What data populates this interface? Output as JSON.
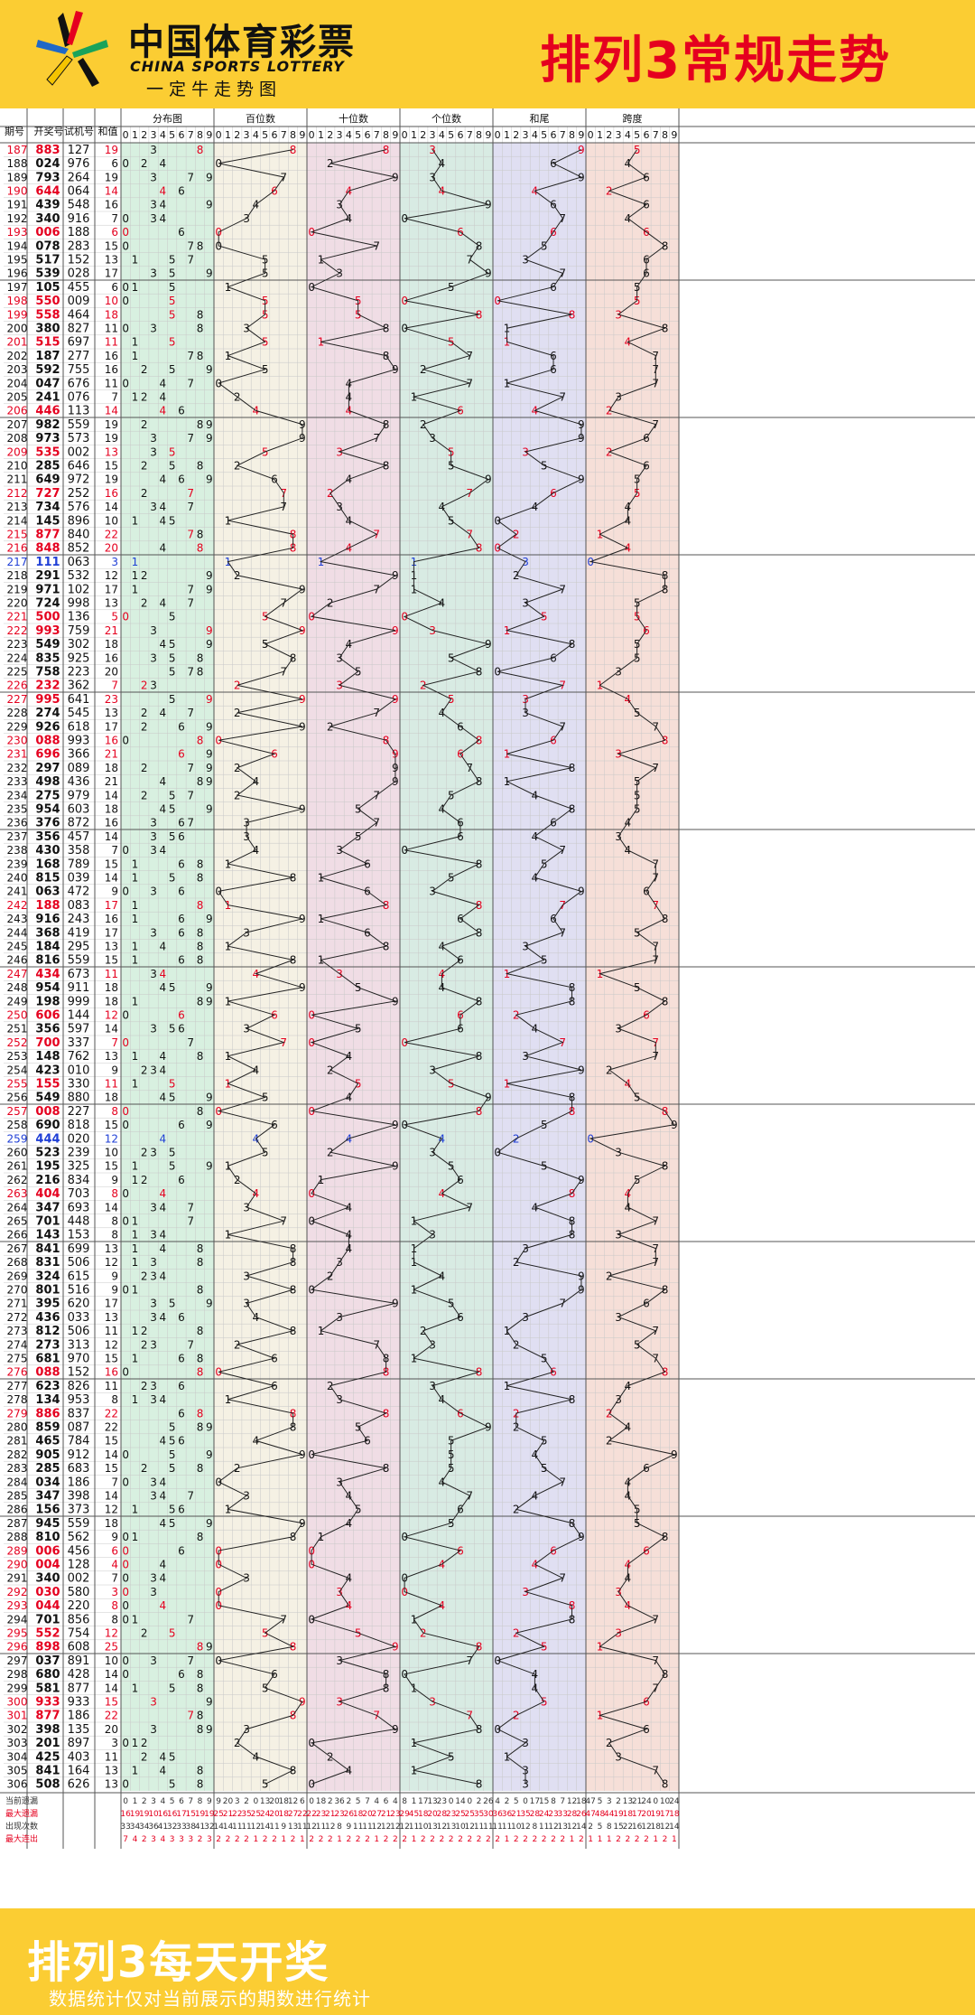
{
  "header": {
    "logo_cn": "中国体育彩票",
    "logo_en": "CHINA SPORTS LOTTERY",
    "logo_slogan": "一定牛走势图",
    "title": "排列3常规走势"
  },
  "footer": {
    "title": "排列3每天开奖",
    "note": "数据统计仅对当前展示的期数进行统计"
  },
  "chart_data": {
    "type": "table",
    "columns": [
      "期号",
      "开奖号",
      "试机号",
      "和值"
    ],
    "sections": [
      {
        "name": "分布图",
        "color": "#d8f0e0",
        "kind": "dist"
      },
      {
        "name": "百位数",
        "color": "#f5f1e4",
        "kind": "hundreds"
      },
      {
        "name": "十位数",
        "color": "#f0dde5",
        "kind": "tens"
      },
      {
        "name": "个位数",
        "color": "#d8ebe3",
        "kind": "units"
      },
      {
        "name": "和尾",
        "color": "#e0dff2",
        "kind": "sumtail"
      },
      {
        "name": "跨度",
        "color": "#f6dfd8",
        "kind": "span"
      }
    ],
    "digits": [
      "0",
      "1",
      "2",
      "3",
      "4",
      "5",
      "6",
      "7",
      "8",
      "9"
    ],
    "draws": [
      {
        "issue": "187",
        "draw": "883",
        "test": "127",
        "sum": 19
      },
      {
        "issue": "188",
        "draw": "024",
        "test": "976",
        "sum": 6
      },
      {
        "issue": "189",
        "draw": "793",
        "test": "264",
        "sum": 19
      },
      {
        "issue": "190",
        "draw": "644",
        "test": "064",
        "sum": 14
      },
      {
        "issue": "191",
        "draw": "439",
        "test": "548",
        "sum": 16
      },
      {
        "issue": "192",
        "draw": "340",
        "test": "916",
        "sum": 7
      },
      {
        "issue": "193",
        "draw": "006",
        "test": "188",
        "sum": 6
      },
      {
        "issue": "194",
        "draw": "078",
        "test": "283",
        "sum": 15
      },
      {
        "issue": "195",
        "draw": "517",
        "test": "152",
        "sum": 13
      },
      {
        "issue": "196",
        "draw": "539",
        "test": "028",
        "sum": 17
      },
      {
        "issue": "197",
        "draw": "105",
        "test": "455",
        "sum": 6
      },
      {
        "issue": "198",
        "draw": "550",
        "test": "009",
        "sum": 10
      },
      {
        "issue": "199",
        "draw": "558",
        "test": "464",
        "sum": 18
      },
      {
        "issue": "200",
        "draw": "380",
        "test": "827",
        "sum": 11
      },
      {
        "issue": "201",
        "draw": "515",
        "test": "697",
        "sum": 11
      },
      {
        "issue": "202",
        "draw": "187",
        "test": "277",
        "sum": 16
      },
      {
        "issue": "203",
        "draw": "592",
        "test": "755",
        "sum": 16
      },
      {
        "issue": "204",
        "draw": "047",
        "test": "676",
        "sum": 11
      },
      {
        "issue": "205",
        "draw": "241",
        "test": "076",
        "sum": 7
      },
      {
        "issue": "206",
        "draw": "446",
        "test": "113",
        "sum": 14
      },
      {
        "issue": "207",
        "draw": "982",
        "test": "559",
        "sum": 19
      },
      {
        "issue": "208",
        "draw": "973",
        "test": "573",
        "sum": 19
      },
      {
        "issue": "209",
        "draw": "535",
        "test": "002",
        "sum": 13
      },
      {
        "issue": "210",
        "draw": "285",
        "test": "646",
        "sum": 15
      },
      {
        "issue": "211",
        "draw": "649",
        "test": "972",
        "sum": 19
      },
      {
        "issue": "212",
        "draw": "727",
        "test": "252",
        "sum": 16
      },
      {
        "issue": "213",
        "draw": "734",
        "test": "576",
        "sum": 14
      },
      {
        "issue": "214",
        "draw": "145",
        "test": "896",
        "sum": 10
      },
      {
        "issue": "215",
        "draw": "877",
        "test": "840",
        "sum": 22
      },
      {
        "issue": "216",
        "draw": "848",
        "test": "852",
        "sum": 20
      },
      {
        "issue": "217",
        "draw": "111",
        "test": "063",
        "sum": 3
      },
      {
        "issue": "218",
        "draw": "291",
        "test": "532",
        "sum": 12
      },
      {
        "issue": "219",
        "draw": "971",
        "test": "102",
        "sum": 17
      },
      {
        "issue": "220",
        "draw": "724",
        "test": "998",
        "sum": 13
      },
      {
        "issue": "221",
        "draw": "500",
        "test": "136",
        "sum": 5
      },
      {
        "issue": "222",
        "draw": "993",
        "test": "759",
        "sum": 21
      },
      {
        "issue": "223",
        "draw": "549",
        "test": "302",
        "sum": 18
      },
      {
        "issue": "224",
        "draw": "835",
        "test": "925",
        "sum": 16
      },
      {
        "issue": "225",
        "draw": "758",
        "test": "223",
        "sum": 20
      },
      {
        "issue": "226",
        "draw": "232",
        "test": "362",
        "sum": 7
      },
      {
        "issue": "227",
        "draw": "995",
        "test": "641",
        "sum": 23
      },
      {
        "issue": "228",
        "draw": "274",
        "test": "545",
        "sum": 13
      },
      {
        "issue": "229",
        "draw": "926",
        "test": "618",
        "sum": 17
      },
      {
        "issue": "230",
        "draw": "088",
        "test": "993",
        "sum": 16
      },
      {
        "issue": "231",
        "draw": "696",
        "test": "366",
        "sum": 21
      },
      {
        "issue": "232",
        "draw": "297",
        "test": "089",
        "sum": 18
      },
      {
        "issue": "233",
        "draw": "498",
        "test": "436",
        "sum": 21
      },
      {
        "issue": "234",
        "draw": "275",
        "test": "979",
        "sum": 14
      },
      {
        "issue": "235",
        "draw": "954",
        "test": "603",
        "sum": 18
      },
      {
        "issue": "236",
        "draw": "376",
        "test": "872",
        "sum": 16
      },
      {
        "issue": "237",
        "draw": "356",
        "test": "457",
        "sum": 14
      },
      {
        "issue": "238",
        "draw": "430",
        "test": "358",
        "sum": 7
      },
      {
        "issue": "239",
        "draw": "168",
        "test": "789",
        "sum": 15
      },
      {
        "issue": "240",
        "draw": "815",
        "test": "039",
        "sum": 14
      },
      {
        "issue": "241",
        "draw": "063",
        "test": "472",
        "sum": 9
      },
      {
        "issue": "242",
        "draw": "188",
        "test": "083",
        "sum": 17
      },
      {
        "issue": "243",
        "draw": "916",
        "test": "243",
        "sum": 16
      },
      {
        "issue": "244",
        "draw": "368",
        "test": "419",
        "sum": 17
      },
      {
        "issue": "245",
        "draw": "184",
        "test": "295",
        "sum": 13
      },
      {
        "issue": "246",
        "draw": "816",
        "test": "559",
        "sum": 15
      },
      {
        "issue": "247",
        "draw": "434",
        "test": "673",
        "sum": 11
      },
      {
        "issue": "248",
        "draw": "954",
        "test": "911",
        "sum": 18
      },
      {
        "issue": "249",
        "draw": "198",
        "test": "999",
        "sum": 18
      },
      {
        "issue": "250",
        "draw": "606",
        "test": "144",
        "sum": 12
      },
      {
        "issue": "251",
        "draw": "356",
        "test": "597",
        "sum": 14
      },
      {
        "issue": "252",
        "draw": "700",
        "test": "337",
        "sum": 7
      },
      {
        "issue": "253",
        "draw": "148",
        "test": "762",
        "sum": 13
      },
      {
        "issue": "254",
        "draw": "423",
        "test": "010",
        "sum": 9
      },
      {
        "issue": "255",
        "draw": "155",
        "test": "330",
        "sum": 11
      },
      {
        "issue": "256",
        "draw": "549",
        "test": "880",
        "sum": 18
      },
      {
        "issue": "257",
        "draw": "008",
        "test": "227",
        "sum": 8
      },
      {
        "issue": "258",
        "draw": "690",
        "test": "818",
        "sum": 15
      },
      {
        "issue": "259",
        "draw": "444",
        "test": "020",
        "sum": 12
      },
      {
        "issue": "260",
        "draw": "523",
        "test": "239",
        "sum": 10
      },
      {
        "issue": "261",
        "draw": "195",
        "test": "325",
        "sum": 15
      },
      {
        "issue": "262",
        "draw": "216",
        "test": "834",
        "sum": 9
      },
      {
        "issue": "263",
        "draw": "404",
        "test": "703",
        "sum": 8
      },
      {
        "issue": "264",
        "draw": "347",
        "test": "693",
        "sum": 14
      },
      {
        "issue": "265",
        "draw": "701",
        "test": "448",
        "sum": 8
      },
      {
        "issue": "266",
        "draw": "143",
        "test": "153",
        "sum": 8
      },
      {
        "issue": "267",
        "draw": "841",
        "test": "699",
        "sum": 13
      },
      {
        "issue": "268",
        "draw": "831",
        "test": "506",
        "sum": 12
      },
      {
        "issue": "269",
        "draw": "324",
        "test": "615",
        "sum": 9
      },
      {
        "issue": "270",
        "draw": "801",
        "test": "516",
        "sum": 9
      },
      {
        "issue": "271",
        "draw": "395",
        "test": "620",
        "sum": 17
      },
      {
        "issue": "272",
        "draw": "436",
        "test": "033",
        "sum": 13
      },
      {
        "issue": "273",
        "draw": "812",
        "test": "506",
        "sum": 11
      },
      {
        "issue": "274",
        "draw": "273",
        "test": "313",
        "sum": 12
      },
      {
        "issue": "275",
        "draw": "681",
        "test": "970",
        "sum": 15
      },
      {
        "issue": "276",
        "draw": "088",
        "test": "152",
        "sum": 16
      },
      {
        "issue": "277",
        "draw": "623",
        "test": "826",
        "sum": 11
      },
      {
        "issue": "278",
        "draw": "134",
        "test": "953",
        "sum": 8
      },
      {
        "issue": "279",
        "draw": "886",
        "test": "837",
        "sum": 22
      },
      {
        "issue": "280",
        "draw": "859",
        "test": "087",
        "sum": 22
      },
      {
        "issue": "281",
        "draw": "465",
        "test": "784",
        "sum": 15
      },
      {
        "issue": "282",
        "draw": "905",
        "test": "912",
        "sum": 14
      },
      {
        "issue": "283",
        "draw": "285",
        "test": "683",
        "sum": 15
      },
      {
        "issue": "284",
        "draw": "034",
        "test": "186",
        "sum": 7
      },
      {
        "issue": "285",
        "draw": "347",
        "test": "398",
        "sum": 14
      },
      {
        "issue": "286",
        "draw": "156",
        "test": "373",
        "sum": 12
      },
      {
        "issue": "287",
        "draw": "945",
        "test": "559",
        "sum": 18
      },
      {
        "issue": "288",
        "draw": "810",
        "test": "562",
        "sum": 9
      },
      {
        "issue": "289",
        "draw": "006",
        "test": "456",
        "sum": 6
      },
      {
        "issue": "290",
        "draw": "004",
        "test": "128",
        "sum": 4
      },
      {
        "issue": "291",
        "draw": "340",
        "test": "002",
        "sum": 7
      },
      {
        "issue": "292",
        "draw": "030",
        "test": "580",
        "sum": 3
      },
      {
        "issue": "293",
        "draw": "044",
        "test": "220",
        "sum": 8
      },
      {
        "issue": "294",
        "draw": "701",
        "test": "856",
        "sum": 8
      },
      {
        "issue": "295",
        "draw": "552",
        "test": "754",
        "sum": 12
      },
      {
        "issue": "296",
        "draw": "898",
        "test": "608",
        "sum": 25
      },
      {
        "issue": "297",
        "draw": "037",
        "test": "891",
        "sum": 10
      },
      {
        "issue": "298",
        "draw": "680",
        "test": "428",
        "sum": 14
      },
      {
        "issue": "299",
        "draw": "581",
        "test": "877",
        "sum": 14
      },
      {
        "issue": "300",
        "draw": "933",
        "test": "933",
        "sum": 15
      },
      {
        "issue": "301",
        "draw": "877",
        "test": "186",
        "sum": 22
      },
      {
        "issue": "302",
        "draw": "398",
        "test": "135",
        "sum": 20
      },
      {
        "issue": "303",
        "draw": "201",
        "test": "897",
        "sum": 3
      },
      {
        "issue": "304",
        "draw": "425",
        "test": "403",
        "sum": 11
      },
      {
        "issue": "305",
        "draw": "841",
        "test": "164",
        "sum": 13
      },
      {
        "issue": "306",
        "draw": "508",
        "test": "626",
        "sum": 13
      }
    ],
    "stats": [
      {
        "label": "当前遗漏",
        "color": "#333333",
        "sections": [
          [
            "0",
            "1",
            "2",
            "3",
            "4",
            "5",
            "6",
            "7",
            "8",
            "9"
          ],
          [
            "9",
            "20",
            "3",
            "2",
            "0",
            "13",
            "20",
            "18",
            "12",
            "6"
          ],
          [
            "0",
            "18",
            "2",
            "36",
            "2",
            "5",
            "7",
            "4",
            "6",
            "4"
          ],
          [
            "8",
            "1",
            "17",
            "13",
            "23",
            "0",
            "14",
            "0",
            "2",
            "26"
          ],
          [
            "4",
            "2",
            "5",
            "0",
            "17",
            "15",
            "8",
            "7",
            "12",
            "18"
          ],
          [
            "47",
            "5",
            "3",
            "2",
            "13",
            "21",
            "24",
            "0",
            "10",
            "24"
          ]
        ]
      },
      {
        "label": "最大遗漏",
        "color": "#e5001f",
        "sections": [
          [
            "16",
            "19",
            "19",
            "10",
            "16",
            "16",
            "17",
            "15",
            "19",
            "19"
          ],
          [
            "25",
            "21",
            "22",
            "35",
            "25",
            "24",
            "20",
            "18",
            "27",
            "22"
          ],
          [
            "22",
            "23",
            "21",
            "23",
            "26",
            "18",
            "20",
            "27",
            "21",
            "23"
          ],
          [
            "29",
            "45",
            "18",
            "20",
            "28",
            "23",
            "25",
            "25",
            "35",
            "30"
          ],
          [
            "36",
            "36",
            "21",
            "35",
            "28",
            "24",
            "23",
            "33",
            "28",
            "26"
          ],
          [
            "47",
            "48",
            "44",
            "19",
            "18",
            "17",
            "20",
            "19",
            "17",
            "18"
          ]
        ]
      },
      {
        "label": "出现次数",
        "color": "#333333",
        "sections": [
          [
            "33",
            "34",
            "34",
            "36",
            "41",
            "32",
            "33",
            "38",
            "41",
            "32"
          ],
          [
            "14",
            "14",
            "11",
            "11",
            "12",
            "14",
            "11",
            "9",
            "13",
            "11"
          ],
          [
            "12",
            "11",
            "12",
            "8",
            "9",
            "11",
            "11",
            "12",
            "12",
            "12"
          ],
          [
            "12",
            "11",
            "10",
            "13",
            "12",
            "13",
            "10",
            "12",
            "11",
            "11"
          ],
          [
            "11",
            "11",
            "10",
            "12",
            "8",
            "11",
            "12",
            "13",
            "12",
            "14"
          ],
          [
            "2",
            "5",
            "8",
            "15",
            "22",
            "16",
            "12",
            "18",
            "12",
            "14"
          ]
        ]
      },
      {
        "label": "最大连出",
        "color": "#e5001f",
        "sections": [
          [
            "7",
            "4",
            "2",
            "3",
            "4",
            "3",
            "3",
            "3",
            "2",
            "3"
          ],
          [
            "2",
            "2",
            "2",
            "2",
            "1",
            "2",
            "2",
            "1",
            "2",
            "1"
          ],
          [
            "2",
            "2",
            "2",
            "1",
            "2",
            "2",
            "2",
            "1",
            "2",
            "2"
          ],
          [
            "2",
            "1",
            "2",
            "2",
            "2",
            "2",
            "2",
            "2",
            "2",
            "2"
          ],
          [
            "2",
            "1",
            "2",
            "2",
            "2",
            "2",
            "2",
            "2",
            "1",
            "2"
          ],
          [
            "1",
            "1",
            "1",
            "2",
            "2",
            "2",
            "2",
            "1",
            "2",
            "1"
          ]
        ]
      }
    ]
  }
}
